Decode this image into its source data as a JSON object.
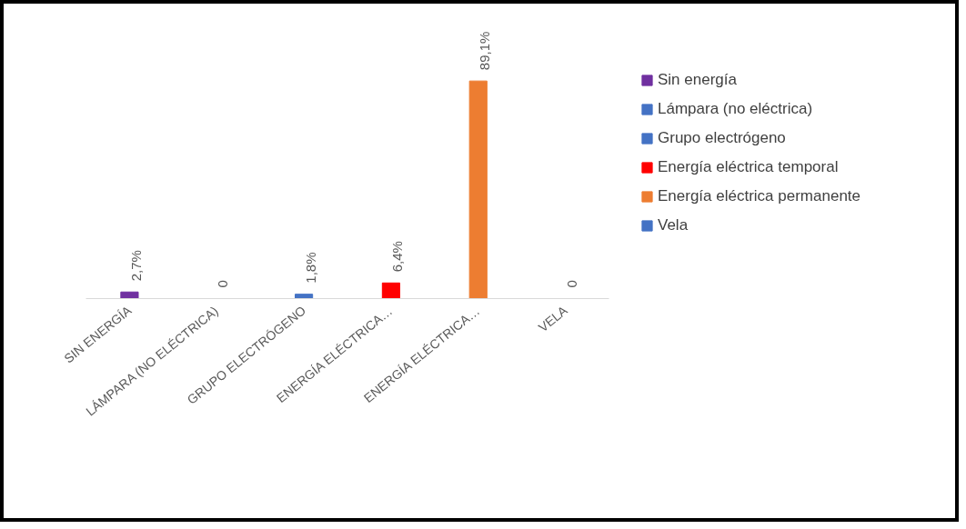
{
  "chart_data": {
    "type": "bar",
    "categories": [
      "SIN ENERGÍA",
      "LÁMPARA (NO ELÉCTRICA)",
      "GRUPO ELECTRÓGENO",
      "ENERGÍA ELÉCTRICA…",
      "ENERGÍA ELÉCTRICA…",
      "VELA"
    ],
    "series": [
      {
        "name": "Sin energía",
        "color": "#7030a0",
        "values": [
          2.7,
          null,
          null,
          null,
          null,
          null
        ],
        "value_labels": [
          "2,7%",
          null,
          null,
          null,
          null,
          null
        ]
      },
      {
        "name": "Lámpara (no eléctrica)",
        "color": "#4472c4",
        "values": [
          null,
          0,
          null,
          null,
          null,
          null
        ],
        "value_labels": [
          null,
          "0",
          null,
          null,
          null,
          null
        ]
      },
      {
        "name": "Grupo electrógeno",
        "color": "#4472c4",
        "values": [
          null,
          null,
          1.8,
          null,
          null,
          null
        ],
        "value_labels": [
          null,
          null,
          "1,8%",
          null,
          null,
          null
        ]
      },
      {
        "name": "Energía eléctrica temporal",
        "color": "#ff0000",
        "values": [
          null,
          null,
          null,
          6.4,
          null,
          null
        ],
        "value_labels": [
          null,
          null,
          null,
          "6,4%",
          null,
          null
        ]
      },
      {
        "name": "Energía eléctrica permanente",
        "color": "#ed7d31",
        "values": [
          null,
          null,
          null,
          null,
          89.1,
          null
        ],
        "value_labels": [
          null,
          null,
          null,
          null,
          "89,1%",
          null
        ]
      },
      {
        "name": "Vela",
        "color": "#4472c4",
        "values": [
          null,
          null,
          null,
          null,
          null,
          0
        ],
        "value_labels": [
          null,
          null,
          null,
          null,
          null,
          "0"
        ]
      }
    ],
    "legend": "right",
    "grid": false
  }
}
